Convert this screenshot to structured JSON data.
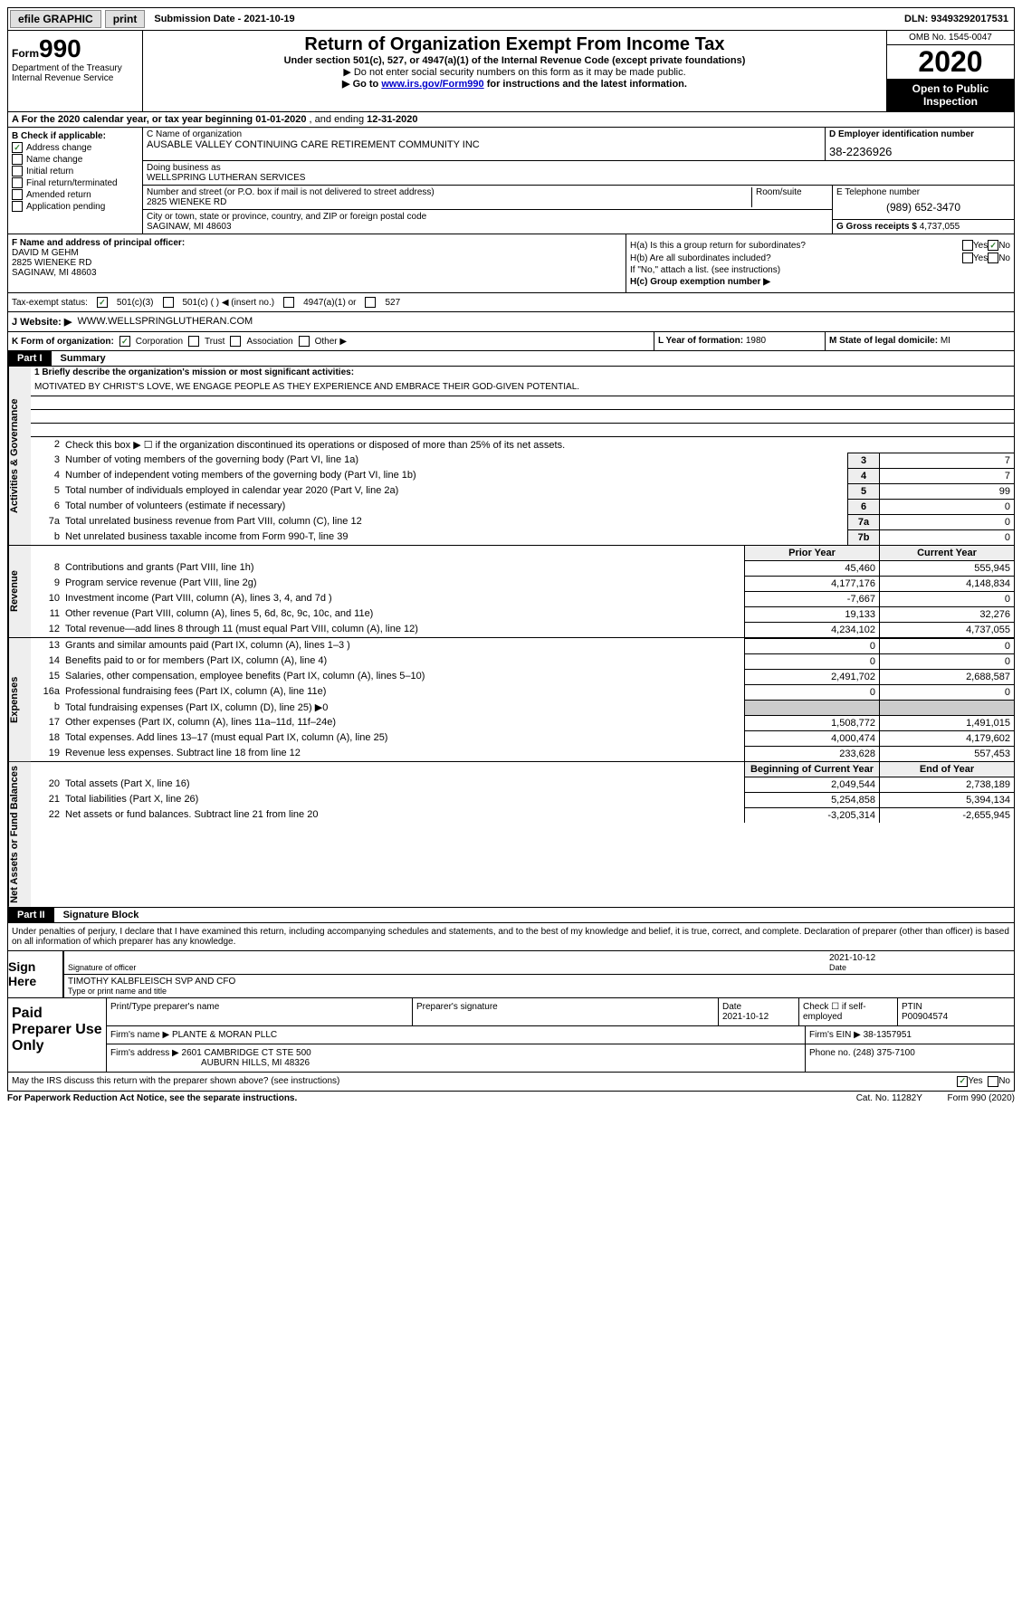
{
  "topbar": {
    "efile": "efile GRAPHIC",
    "print": "print",
    "submission": "Submission Date - 2021-10-19",
    "dln": "DLN: 93493292017531"
  },
  "header": {
    "form_prefix": "Form",
    "form_num": "990",
    "dept1": "Department of the Treasury",
    "dept2": "Internal Revenue Service",
    "title": "Return of Organization Exempt From Income Tax",
    "sub1": "Under section 501(c), 527, or 4947(a)(1) of the Internal Revenue Code (except private foundations)",
    "sub2": "▶ Do not enter social security numbers on this form as it may be made public.",
    "sub3_pre": "▶ Go to ",
    "sub3_link": "www.irs.gov/Form990",
    "sub3_post": " for instructions and the latest information.",
    "omb": "OMB No. 1545-0047",
    "year": "2020",
    "inspect": "Open to Public Inspection"
  },
  "rowA": {
    "text_pre": "A For the 2020 calendar year, or tax year beginning ",
    "begin": "01-01-2020",
    "mid": " , and ending ",
    "end": "12-31-2020"
  },
  "colB": {
    "header": "B Check if applicable:",
    "items": [
      {
        "label": "Address change",
        "checked": true
      },
      {
        "label": "Name change",
        "checked": false
      },
      {
        "label": "Initial return",
        "checked": false
      },
      {
        "label": "Final return/terminated",
        "checked": false
      },
      {
        "label": "Amended return",
        "checked": false
      },
      {
        "label": "Application pending",
        "checked": false
      }
    ]
  },
  "colC": {
    "name_lbl": "C Name of organization",
    "name": "AUSABLE VALLEY CONTINUING CARE RETIREMENT COMMUNITY INC",
    "dba_lbl": "Doing business as",
    "dba": "WELLSPRING LUTHERAN SERVICES",
    "addr_lbl": "Number and street (or P.O. box if mail is not delivered to street address)",
    "room_lbl": "Room/suite",
    "addr": "2825 WIENEKE RD",
    "city_lbl": "City or town, state or province, country, and ZIP or foreign postal code",
    "city": "SAGINAW, MI  48603"
  },
  "colD": {
    "lbl": "D Employer identification number",
    "val": "38-2236926"
  },
  "colE": {
    "lbl": "E Telephone number",
    "val": "(989) 652-3470",
    "gross_lbl": "G Gross receipts $ ",
    "gross_val": "4,737,055"
  },
  "colF": {
    "lbl": "F Name and address of principal officer:",
    "name": "DAVID M GEHM",
    "addr1": "2825 WIENEKE RD",
    "addr2": "SAGINAW, MI  48603"
  },
  "colH": {
    "a_lbl": "H(a)  Is this a group return for subordinates?",
    "a_yes": "Yes",
    "a_no": "No",
    "b_lbl": "H(b)  Are all subordinates included?",
    "b_note": "If \"No,\" attach a list. (see instructions)",
    "c_lbl": "H(c)  Group exemption number ▶"
  },
  "rowTax": {
    "lbl": "Tax-exempt status:",
    "opt1": "501(c)(3)",
    "opt2": "501(c) (   ) ◀ (insert no.)",
    "opt3": "4947(a)(1) or",
    "opt4": "527"
  },
  "rowJ": {
    "lbl": "J   Website: ▶",
    "val": "WWW.WELLSPRINGLUTHERAN.COM"
  },
  "rowK": {
    "lbl": "K Form of organization:",
    "corp": "Corporation",
    "trust": "Trust",
    "assoc": "Association",
    "other": "Other ▶",
    "l_lbl": "L Year of formation: ",
    "l_val": "1980",
    "m_lbl": "M State of legal domicile: ",
    "m_val": "MI"
  },
  "part1": {
    "tag": "Part I",
    "title": "Summary"
  },
  "summary": {
    "q1_lbl": "1   Briefly describe the organization's mission or most significant activities:",
    "mission": "MOTIVATED BY CHRIST'S LOVE, WE ENGAGE PEOPLE AS THEY EXPERIENCE AND EMBRACE THEIR GOD-GIVEN POTENTIAL.",
    "q2": "Check this box ▶ ☐  if the organization discontinued its operations or disposed of more than 25% of its net assets.",
    "lines_gov": [
      {
        "n": "3",
        "t": "Number of voting members of the governing body (Part VI, line 1a)",
        "b": "3",
        "v": "7"
      },
      {
        "n": "4",
        "t": "Number of independent voting members of the governing body (Part VI, line 1b)",
        "b": "4",
        "v": "7"
      },
      {
        "n": "5",
        "t": "Total number of individuals employed in calendar year 2020 (Part V, line 2a)",
        "b": "5",
        "v": "99"
      },
      {
        "n": "6",
        "t": "Total number of volunteers (estimate if necessary)",
        "b": "6",
        "v": "0"
      },
      {
        "n": "7a",
        "t": "Total unrelated business revenue from Part VIII, column (C), line 12",
        "b": "7a",
        "v": "0"
      },
      {
        "n": "b",
        "t": "Net unrelated business taxable income from Form 990-T, line 39",
        "b": "7b",
        "v": "0"
      }
    ],
    "col_prior": "Prior Year",
    "col_curr": "Current Year",
    "lines_rev": [
      {
        "n": "8",
        "t": "Contributions and grants (Part VIII, line 1h)",
        "p": "45,460",
        "c": "555,945"
      },
      {
        "n": "9",
        "t": "Program service revenue (Part VIII, line 2g)",
        "p": "4,177,176",
        "c": "4,148,834"
      },
      {
        "n": "10",
        "t": "Investment income (Part VIII, column (A), lines 3, 4, and 7d )",
        "p": "-7,667",
        "c": "0"
      },
      {
        "n": "11",
        "t": "Other revenue (Part VIII, column (A), lines 5, 6d, 8c, 9c, 10c, and 11e)",
        "p": "19,133",
        "c": "32,276"
      },
      {
        "n": "12",
        "t": "Total revenue—add lines 8 through 11 (must equal Part VIII, column (A), line 12)",
        "p": "4,234,102",
        "c": "4,737,055"
      }
    ],
    "lines_exp": [
      {
        "n": "13",
        "t": "Grants and similar amounts paid (Part IX, column (A), lines 1–3 )",
        "p": "0",
        "c": "0"
      },
      {
        "n": "14",
        "t": "Benefits paid to or for members (Part IX, column (A), line 4)",
        "p": "0",
        "c": "0"
      },
      {
        "n": "15",
        "t": "Salaries, other compensation, employee benefits (Part IX, column (A), lines 5–10)",
        "p": "2,491,702",
        "c": "2,688,587"
      },
      {
        "n": "16a",
        "t": "Professional fundraising fees (Part IX, column (A), line 11e)",
        "p": "0",
        "c": "0"
      },
      {
        "n": "b",
        "t": "Total fundraising expenses (Part IX, column (D), line 25) ▶0",
        "p": "",
        "c": "",
        "grey": true
      },
      {
        "n": "17",
        "t": "Other expenses (Part IX, column (A), lines 11a–11d, 11f–24e)",
        "p": "1,508,772",
        "c": "1,491,015"
      },
      {
        "n": "18",
        "t": "Total expenses. Add lines 13–17 (must equal Part IX, column (A), line 25)",
        "p": "4,000,474",
        "c": "4,179,602"
      },
      {
        "n": "19",
        "t": "Revenue less expenses. Subtract line 18 from line 12",
        "p": "233,628",
        "c": "557,453"
      }
    ],
    "col_begin": "Beginning of Current Year",
    "col_end": "End of Year",
    "lines_net": [
      {
        "n": "20",
        "t": "Total assets (Part X, line 16)",
        "p": "2,049,544",
        "c": "2,738,189"
      },
      {
        "n": "21",
        "t": "Total liabilities (Part X, line 26)",
        "p": "5,254,858",
        "c": "5,394,134"
      },
      {
        "n": "22",
        "t": "Net assets or fund balances. Subtract line 21 from line 20",
        "p": "-3,205,314",
        "c": "-2,655,945"
      }
    ],
    "side_gov": "Activities & Governance",
    "side_rev": "Revenue",
    "side_exp": "Expenses",
    "side_net": "Net Assets or Fund Balances"
  },
  "part2": {
    "tag": "Part II",
    "title": "Signature Block"
  },
  "sig": {
    "perjury": "Under penalties of perjury, I declare that I have examined this return, including accompanying schedules and statements, and to the best of my knowledge and belief, it is true, correct, and complete. Declaration of preparer (other than officer) is based on all information of which preparer has any knowledge.",
    "sign_here": "Sign Here",
    "sig_officer_lbl": "Signature of officer",
    "sig_date": "2021-10-12",
    "date_lbl": "Date",
    "name_title": "TIMOTHY KALBFLEISCH  SVP AND CFO",
    "name_title_lbl": "Type or print name and title"
  },
  "prep": {
    "title": "Paid Preparer Use Only",
    "col1": "Print/Type preparer's name",
    "col2": "Preparer's signature",
    "col3_lbl": "Date",
    "col3_val": "2021-10-12",
    "col4_lbl": "Check ☐ if self-employed",
    "col5_lbl": "PTIN",
    "col5_val": "P00904574",
    "firm_name_lbl": "Firm's name      ▶ ",
    "firm_name": "PLANTE & MORAN PLLC",
    "firm_ein_lbl": "Firm's EIN ▶ ",
    "firm_ein": "38-1357951",
    "firm_addr_lbl": "Firm's address ▶ ",
    "firm_addr1": "2601 CAMBRIDGE CT STE 500",
    "firm_addr2": "AUBURN HILLS, MI  48326",
    "phone_lbl": "Phone no. ",
    "phone": "(248) 375-7100"
  },
  "discuss": {
    "q": "May the IRS discuss this return with the preparer shown above? (see instructions)",
    "yes": "Yes",
    "no": "No"
  },
  "footer": {
    "left": "For Paperwork Reduction Act Notice, see the separate instructions.",
    "mid": "Cat. No. 11282Y",
    "right": "Form 990 (2020)"
  }
}
